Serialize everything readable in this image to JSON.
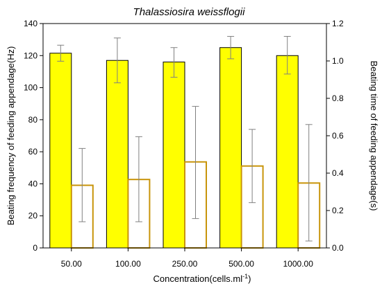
{
  "chart_data": {
    "type": "bar",
    "title": "Thalassiosira weissflogii",
    "xlabel": "Concentration(cells.ml",
    "xlabel_sup": "-1",
    "xlabel_end": ")",
    "ylabel": "Beating frequency of feeding appendage(Hz)",
    "y2label": "Beating time of feeding appendage(s)",
    "categories": [
      "50.00",
      "100.00",
      "250.00",
      "500.00",
      "1000.00"
    ],
    "ylim": [
      0,
      140
    ],
    "y2lim": [
      0,
      1.2
    ],
    "yticks": [
      "0",
      "20",
      "40",
      "60",
      "80",
      "100",
      "120",
      "140"
    ],
    "y2ticks": [
      "0.0",
      "0.2",
      "0.4",
      "0.6",
      "0.8",
      "1.0",
      "1.2"
    ],
    "grid": false,
    "series": [
      {
        "axis": "left",
        "fill": "#ffff00",
        "stroke": "#000000",
        "values": [
          121.5,
          117,
          116,
          125,
          120
        ],
        "error_low": [
          116.5,
          103,
          106.5,
          118,
          108.5
        ],
        "error_high": [
          126.5,
          131,
          125,
          132,
          132
        ]
      },
      {
        "axis": "right",
        "fill": "#ffffff",
        "stroke": "#c8940a",
        "values": [
          0.335,
          0.366,
          0.46,
          0.438,
          0.347
        ],
        "error_low": [
          0.14,
          0.14,
          0.157,
          0.242,
          0.037
        ],
        "error_high": [
          0.532,
          0.595,
          0.757,
          0.634,
          0.66
        ]
      }
    ],
    "colors": {
      "axis": "#000000",
      "error_bar": "#808080"
    }
  }
}
